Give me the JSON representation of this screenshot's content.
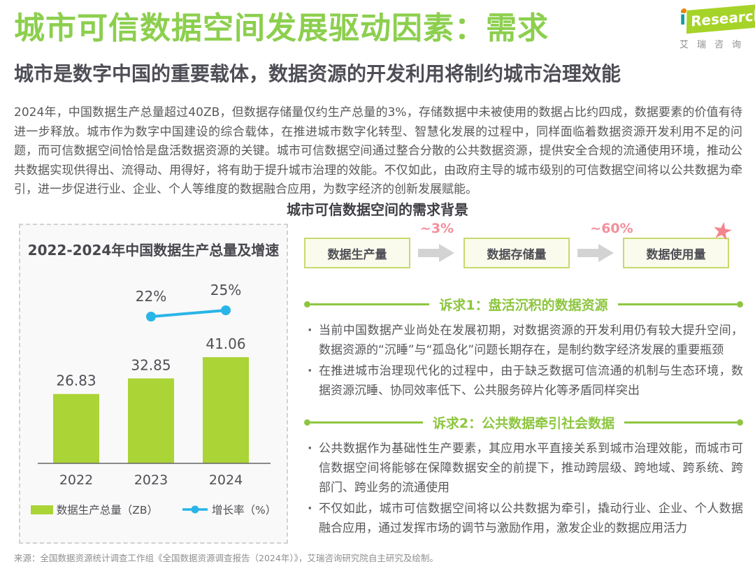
{
  "page": {
    "title": "城市可信数据空间发展驱动因素：需求",
    "subtitle": "城市是数字中国的重要载体，数据资源的开发利用将制约城市治理效能",
    "intro": "2024年，中国数据生产总量超过40ZB，但数据存储量仅约生产总量的3%，存储数据中未被使用的数据占比约四成，数据要素的价值有待进一步释放。城市作为数字中国建设的综合载体，在推进城市数字化转型、智慧化发展的过程中，同样面临着数据资源开发利用不足的问题，而可信数据空间恰恰是盘活数据资源的关键。城市可信数据空间通过整合分散的公共数据资源，提供安全合规的流通使用环境，推动公共数据实现供得出、流得动、用得好，将有助于提升城市治理的效能。不仅如此，由政府主导的城市级别的可信数据空间将以公共数据为牵引，进一步促进行业、企业、个人等维度的数据融合应用，为数字经济的创新发展赋能。",
    "section_heading": "城市可信数据空间的需求背景",
    "source": "来源：全国数据资源统计调查工作组《全国数据资源调查报告（2024年）》，艾瑞咨询研究院自主研究及绘制。"
  },
  "logo": {
    "brand_i": "i",
    "brand_text": "Research",
    "brand_cn": "艾瑞咨询"
  },
  "chart_data": {
    "type": "bar",
    "title": "2022-2024年中国数据生产总量及增速",
    "categories": [
      "2022",
      "2023",
      "2024"
    ],
    "series": [
      {
        "name": "数据生产总量（ZB）",
        "type": "bar",
        "values": [
          26.83,
          32.85,
          41.06
        ],
        "color": "#abd437"
      },
      {
        "name": "增长率（%）",
        "type": "line",
        "values": [
          null,
          22,
          25
        ],
        "point_labels": [
          "",
          "22%",
          "25%"
        ],
        "color": "#29b5e8"
      }
    ],
    "value_labels": [
      "26.83",
      "32.85",
      "41.06"
    ],
    "xlabel": "",
    "ylabel": "",
    "ylim": [
      0,
      45
    ],
    "grid": false,
    "legend_position": "bottom"
  },
  "flow": {
    "boxes": [
      "数据生产量",
      "数据存储量",
      "数据使用量"
    ],
    "arrow1_label": "~3%",
    "arrow2_label": "~60%",
    "star_glyph": "★"
  },
  "demands": [
    {
      "heading": "诉求1：盘活沉积的数据资源",
      "bullets": [
        "当前中国数据产业尚处在发展初期，对数据资源的开发利用仍有较大提升空间，数据资源的“沉睡”与“孤岛化”问题长期存在，是制约数字经济发展的重要瓶颈",
        "在推进城市治理现代化的过程中，由于缺乏数据可信流通的机制与生态环境，数据资源沉睡、协同效率低下、公共服务碎片化等矛盾同样突出"
      ]
    },
    {
      "heading": "诉求2：公共数据牵引社会数据",
      "bullets": [
        "公共数据作为基础性生产要素，其应用水平直接关系到城市治理效能，而城市可信数据空间将能够在保障数据安全的前提下，推动跨层级、跨地域、跨系统、跨部门、跨业务的流通使用",
        "不仅如此，城市可信数据空间将以公共数据为牵引，撬动行业、企业、个人数据融合应用，通过发挥市场的调节与激励作用，激发企业的数据应用活力"
      ]
    }
  ],
  "colors": {
    "title_green": "#8ccf4e",
    "demand_green": "#8dc63f",
    "bar_green": "#abd437",
    "line_cyan": "#29b5e8",
    "accent_pink": "#f48f9b",
    "box_fill": "#fafbec",
    "box_border": "#c8d96e",
    "text_dark": "#4e4e56",
    "text_body": "#595959"
  }
}
